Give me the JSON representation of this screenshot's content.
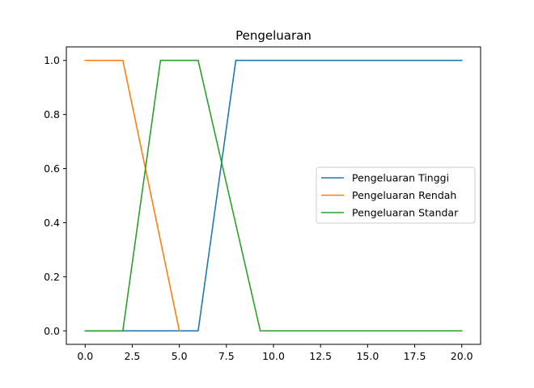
{
  "chart_data": {
    "type": "line",
    "title": "Pengeluaran",
    "xlabel": "",
    "ylabel": "",
    "xlim": [
      -1,
      21
    ],
    "ylim": [
      -0.05,
      1.05
    ],
    "x_ticks": [
      0.0,
      2.5,
      5.0,
      7.5,
      10.0,
      12.5,
      15.0,
      17.5,
      20.0
    ],
    "x_tick_labels": [
      "0.0",
      "2.5",
      "5.0",
      "7.5",
      "10.0",
      "12.5",
      "15.0",
      "17.5",
      "20.0"
    ],
    "y_ticks": [
      0.0,
      0.2,
      0.4,
      0.6,
      0.8,
      1.0
    ],
    "y_tick_labels": [
      "0.0",
      "0.2",
      "0.4",
      "0.6",
      "0.8",
      "1.0"
    ],
    "grid": false,
    "legend_position": "center-right",
    "series": [
      {
        "name": "Pengeluaran Tinggi",
        "color": "#1f77b4",
        "x": [
          0,
          6,
          8,
          20
        ],
        "y": [
          0,
          0,
          1,
          1
        ]
      },
      {
        "name": "Pengeluaran Rendah",
        "color": "#ff7f0e",
        "x": [
          0,
          2,
          5
        ],
        "y": [
          1,
          1,
          0
        ]
      },
      {
        "name": "Pengeluaran Standar",
        "color": "#2ca02c",
        "x": [
          0,
          2,
          4,
          6,
          9.3,
          20
        ],
        "y": [
          0,
          0,
          1,
          1,
          0,
          0
        ]
      }
    ]
  }
}
